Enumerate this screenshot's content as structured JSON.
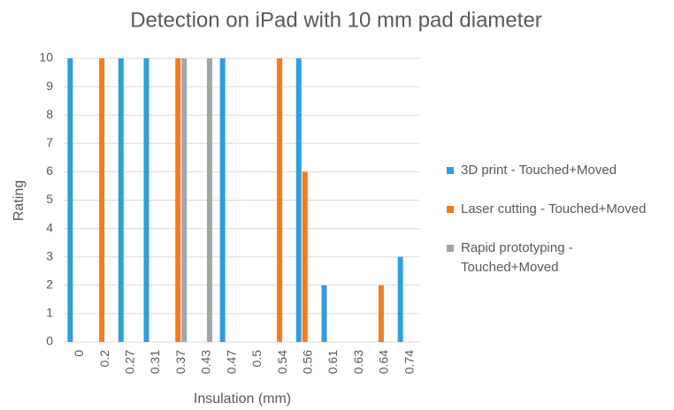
{
  "chart_data": {
    "type": "bar",
    "title": "Detection on iPad with 10 mm pad diameter",
    "x_label": "Insulation (mm)",
    "y_label": "Rating",
    "categories": [
      "0",
      "0.2",
      "0.27",
      "0.31",
      "0.37",
      "0.43",
      "0.47",
      "0.5",
      "0.54",
      "0.56",
      "0.61",
      "0.63",
      "0.64",
      "0.74"
    ],
    "series": [
      {
        "name": "3D print - Touched+Moved",
        "color": "#2e9fd8",
        "values": [
          10,
          null,
          10,
          10,
          null,
          null,
          10,
          null,
          null,
          10,
          2,
          null,
          null,
          3
        ]
      },
      {
        "name": "Laser cutting - Touched+Moved",
        "color": "#f47b20",
        "values": [
          null,
          10,
          null,
          null,
          10,
          null,
          null,
          null,
          10,
          6,
          null,
          null,
          2,
          null
        ]
      },
      {
        "name": "Rapid prototyping - Touched+Moved",
        "color": "#a5a5a5",
        "values": [
          null,
          null,
          null,
          null,
          10,
          10,
          null,
          null,
          null,
          null,
          null,
          null,
          null,
          null
        ]
      }
    ],
    "ylim": [
      0,
      10
    ],
    "yticks": [
      0,
      1,
      2,
      3,
      4,
      5,
      6,
      7,
      8,
      9,
      10
    ],
    "grid": true,
    "legend": "right"
  }
}
